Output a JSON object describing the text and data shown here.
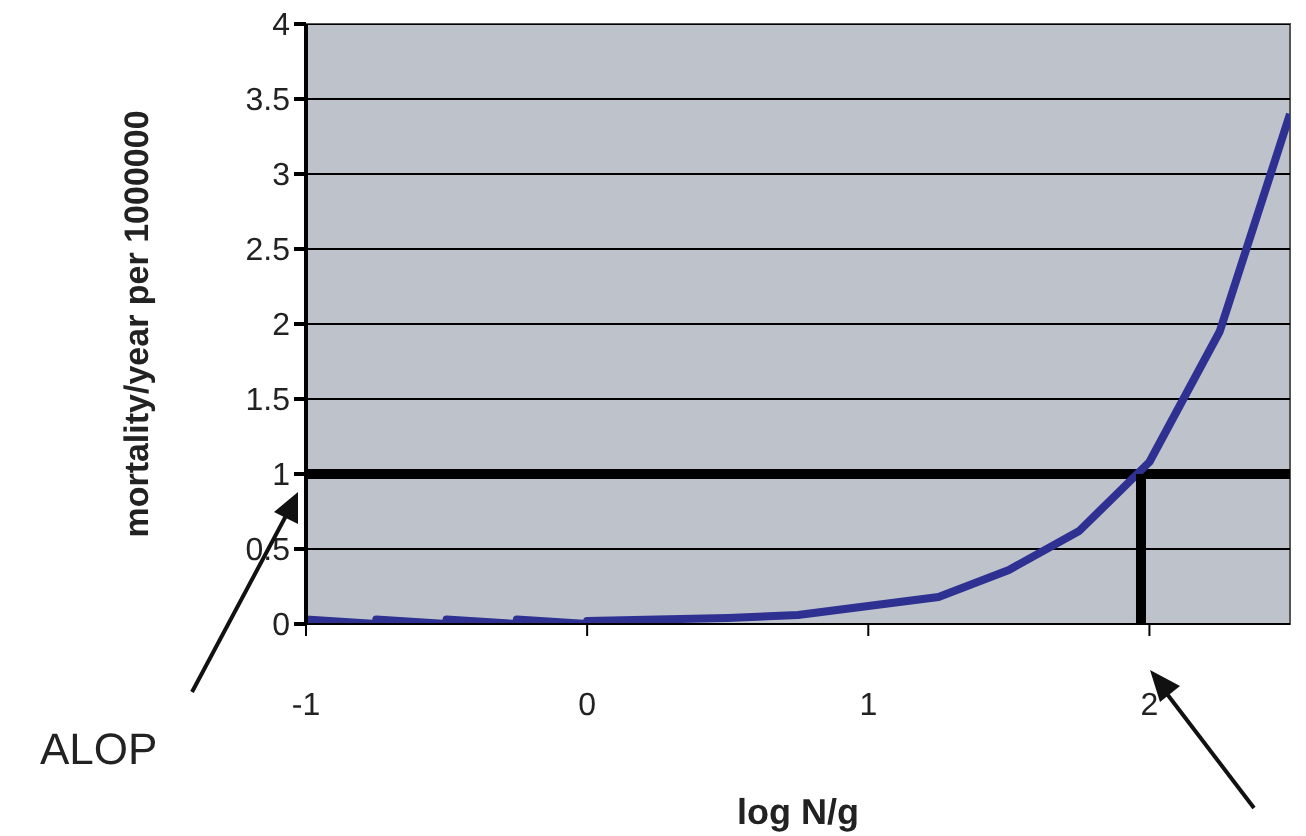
{
  "chart_data": {
    "type": "line",
    "xlabel": "log N/g",
    "ylabel": "mortality/year per 1000000",
    "xlim": [
      -1,
      2.5
    ],
    "xticks": [
      -1,
      0,
      1,
      2
    ],
    "ylim": [
      0,
      4
    ],
    "yticks": [
      0,
      0.5,
      1,
      1.5,
      2,
      2.5,
      3,
      3.5,
      4
    ],
    "grid": "y",
    "marker": "none",
    "line_style": "solid",
    "series": [
      {
        "color": "#2e3192",
        "x": [
          -1,
          -0.75,
          -0.75,
          -0.5,
          -0.5,
          -0.25,
          -0.25,
          0,
          0,
          0.25,
          0.5,
          0.75,
          1,
          1.25,
          1.5,
          1.75,
          2,
          2.25,
          2.5
        ],
        "values": [
          0.03,
          0,
          0.03,
          0,
          0.03,
          0,
          0.03,
          0,
          0.02,
          0.03,
          0.04,
          0.06,
          0.12,
          0.18,
          0.36,
          0.62,
          1.08,
          1.95,
          3.4
        ]
      },
      {
        "type": "line",
        "color": "#000000",
        "x": [
          1.97,
          1.97
        ],
        "values": [
          0,
          1
        ]
      }
    ],
    "ref_lines": [
      {
        "axis": "y",
        "value": 1,
        "color": "#000000"
      }
    ],
    "annotations": [
      "ALOP"
    ]
  }
}
